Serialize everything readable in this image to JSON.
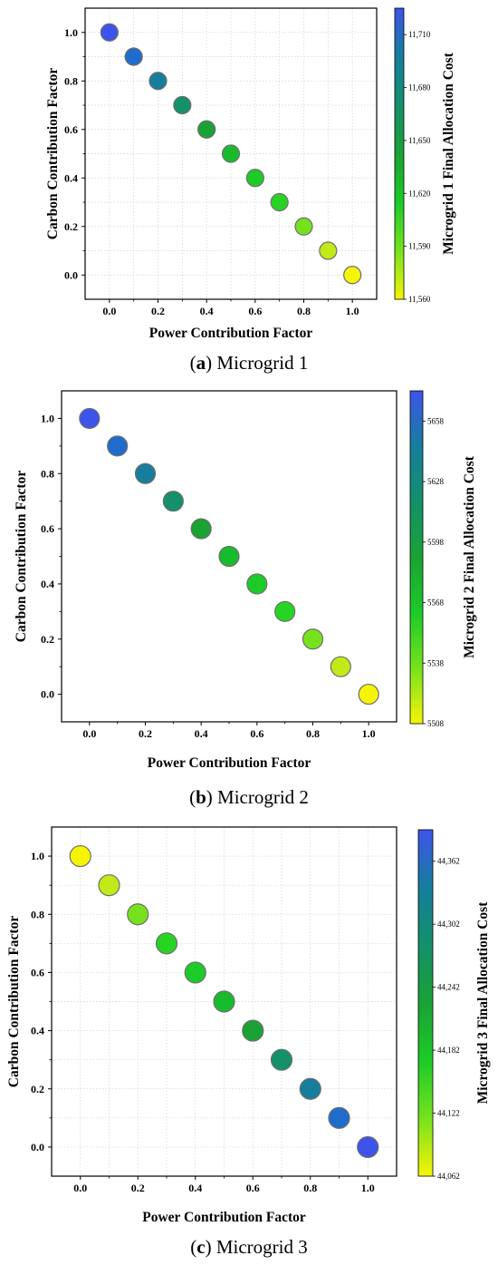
{
  "chart_data": [
    {
      "type": "scatter",
      "panel_letter": "a",
      "caption": "Microgrid 1",
      "xlabel": "Power Contribution Factor",
      "ylabel": "Carbon Contribution Factor",
      "colorbar_label": "Microgrid 1 Final Allocation Cost",
      "colorbar_ticks": [
        "11,560",
        "11,590",
        "11,620",
        "11,650",
        "11,680",
        "11,710"
      ],
      "colorbar_range": [
        11560,
        11725
      ],
      "xlim": [
        -0.1,
        1.1
      ],
      "ylim": [
        -0.1,
        1.1
      ],
      "x_ticks": [
        "0.0",
        "0.2",
        "0.4",
        "0.6",
        "0.8",
        "1.0"
      ],
      "y_ticks": [
        "0.0",
        "0.2",
        "0.4",
        "0.6",
        "0.8",
        "1.0"
      ],
      "grid": true,
      "x": [
        0.0,
        0.1,
        0.2,
        0.3,
        0.4,
        0.5,
        0.6,
        0.7,
        0.8,
        0.9,
        1.0
      ],
      "y": [
        1.0,
        0.9,
        0.8,
        0.7,
        0.6,
        0.5,
        0.4,
        0.3,
        0.2,
        0.1,
        0.0
      ],
      "cost": [
        11722,
        11708,
        11692,
        11678,
        11662,
        11645,
        11630,
        11615,
        11600,
        11585,
        11561
      ],
      "colors": [
        "#3d54ea",
        "#1f6ccc",
        "#167e9c",
        "#14906a",
        "#1aa235",
        "#18bb2c",
        "#1ccb28",
        "#27d424",
        "#76e21e",
        "#c2ea18",
        "#f6f406"
      ]
    },
    {
      "type": "scatter",
      "panel_letter": "b",
      "caption": "Microgrid 2",
      "xlabel": "Power Contribution Factor",
      "ylabel": "Carbon Contribution Factor",
      "colorbar_label": "Microgrid 2 Final Allocation Cost",
      "colorbar_ticks": [
        "5508",
        "5538",
        "5568",
        "5598",
        "5628",
        "5658"
      ],
      "colorbar_range": [
        5508,
        5673
      ],
      "xlim": [
        -0.1,
        1.1
      ],
      "ylim": [
        -0.1,
        1.1
      ],
      "x_ticks": [
        "0.0",
        "0.2",
        "0.4",
        "0.6",
        "0.8",
        "1.0"
      ],
      "y_ticks": [
        "0.0",
        "0.2",
        "0.4",
        "0.6",
        "0.8",
        "1.0"
      ],
      "grid": false,
      "x": [
        0.0,
        0.1,
        0.2,
        0.3,
        0.4,
        0.5,
        0.6,
        0.7,
        0.8,
        0.9,
        1.0
      ],
      "y": [
        1.0,
        0.9,
        0.8,
        0.7,
        0.6,
        0.5,
        0.4,
        0.3,
        0.2,
        0.1,
        0.0
      ],
      "cost": [
        5670,
        5655,
        5640,
        5625,
        5610,
        5594,
        5578,
        5562,
        5546,
        5530,
        5510
      ],
      "colors": [
        "#3d54ea",
        "#1f6ccc",
        "#167e9c",
        "#14906a",
        "#1aa235",
        "#18bb2c",
        "#1ccb28",
        "#27d424",
        "#76e21e",
        "#c2ea18",
        "#f6f406"
      ]
    },
    {
      "type": "scatter",
      "panel_letter": "c",
      "caption": "Microgrid 3",
      "xlabel": "Power Contribution Factor",
      "ylabel": "Carbon Contribution Factor",
      "colorbar_label": "Microgrid 3 Final Allocation Cost",
      "colorbar_ticks": [
        "44,062",
        "44,122",
        "44,182",
        "44,242",
        "44,302",
        "44,362"
      ],
      "colorbar_range": [
        44062,
        44392
      ],
      "xlim": [
        -0.1,
        1.1
      ],
      "ylim": [
        -0.1,
        1.1
      ],
      "x_ticks": [
        "0.0",
        "0.2",
        "0.4",
        "0.6",
        "0.8",
        "1.0"
      ],
      "y_ticks": [
        "0.0",
        "0.2",
        "0.4",
        "0.6",
        "0.8",
        "1.0"
      ],
      "grid": true,
      "x": [
        0.0,
        0.1,
        0.2,
        0.3,
        0.4,
        0.5,
        0.6,
        0.7,
        0.8,
        0.9,
        1.0
      ],
      "y": [
        1.0,
        0.9,
        0.8,
        0.7,
        0.6,
        0.5,
        0.4,
        0.3,
        0.2,
        0.1,
        0.0
      ],
      "cost": [
        44065,
        44100,
        44140,
        44175,
        44205,
        44230,
        44255,
        44285,
        44320,
        44355,
        44390
      ],
      "colors": [
        "#f6f406",
        "#c2ea18",
        "#76e21e",
        "#27d424",
        "#1ccb28",
        "#18bb2c",
        "#1aa235",
        "#14906a",
        "#167e9c",
        "#1f6ccc",
        "#3d54ea"
      ]
    }
  ]
}
